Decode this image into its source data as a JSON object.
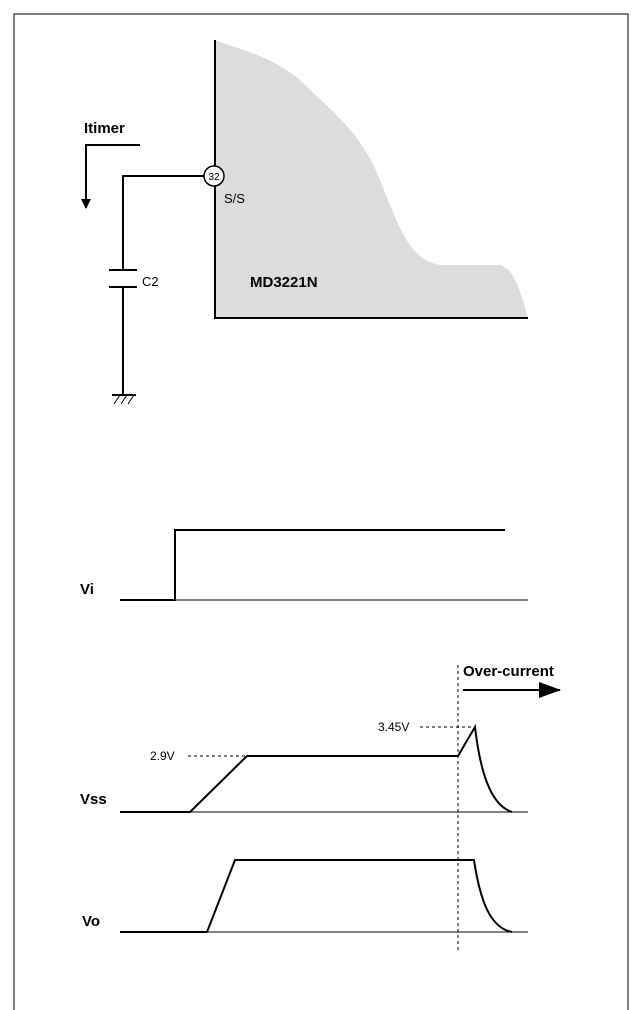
{
  "circuit": {
    "current_label": "Itimer",
    "pin_number": "32",
    "pin_name": "S/S",
    "capacitor": "C2",
    "chip": "MD3221N"
  },
  "waveforms": {
    "vi": "Vi",
    "vss": "Vss",
    "vo": "Vo",
    "event": "Over-current",
    "vss_peak": "3.45V",
    "vss_level": "2.9V"
  }
}
